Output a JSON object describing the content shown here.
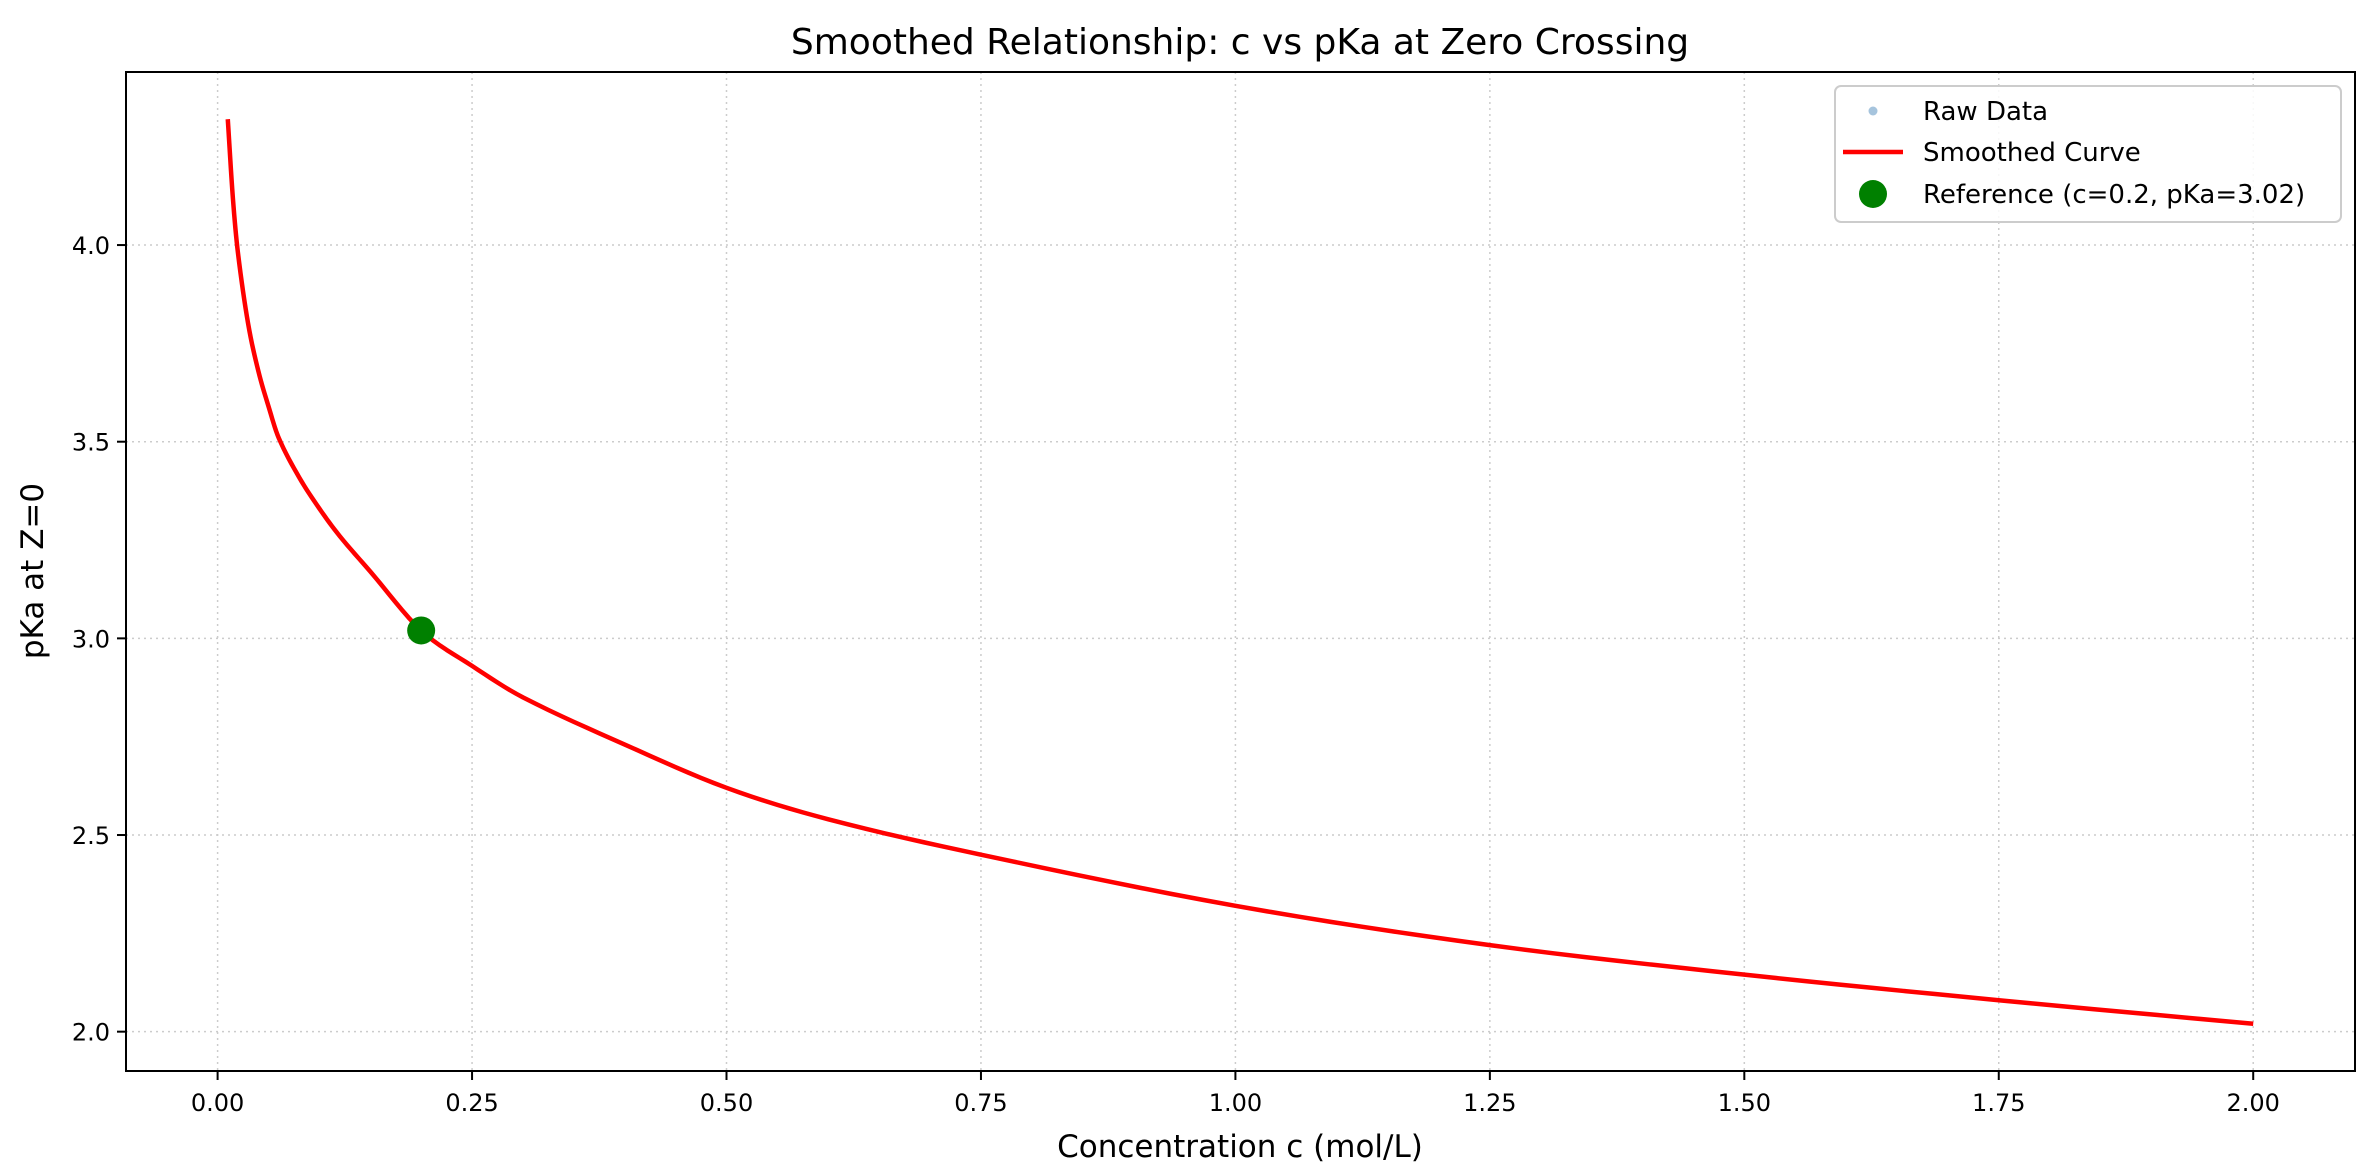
{
  "chart_data": {
    "type": "line",
    "title": "Smoothed Relationship: c vs pKa at Zero Crossing",
    "xlabel": "Concentration c (mol/L)",
    "ylabel": "pKa at Z=0",
    "xlim": [
      -0.09,
      2.1
    ],
    "ylim": [
      1.9,
      4.44
    ],
    "grid": true,
    "grid_style": "dotted",
    "legend_position": "top-right",
    "x_ticks": [
      "0.00",
      "0.25",
      "0.50",
      "0.75",
      "1.00",
      "1.25",
      "1.50",
      "1.75",
      "2.00"
    ],
    "y_ticks": [
      "2.0",
      "2.5",
      "3.0",
      "3.5",
      "4.0"
    ],
    "legend": [
      {
        "label": "Raw Data",
        "marker": "dot",
        "color": "#a6c4dd"
      },
      {
        "label": "Smoothed Curve",
        "marker": "line",
        "color": "#ff0000"
      },
      {
        "label": "Reference (c=0.2, pKa=3.02)",
        "marker": "circle",
        "color": "#008000"
      }
    ],
    "series": [
      {
        "name": "Smoothed Curve",
        "color": "#ff0000",
        "x": [
          0.01,
          0.015,
          0.02,
          0.03,
          0.04,
          0.05,
          0.06,
          0.08,
          0.1,
          0.12,
          0.15,
          0.2,
          0.25,
          0.3,
          0.4,
          0.5,
          0.6,
          0.75,
          1.0,
          1.25,
          1.5,
          1.75,
          2.0
        ],
        "y": [
          4.32,
          4.12,
          3.98,
          3.8,
          3.68,
          3.59,
          3.51,
          3.41,
          3.33,
          3.26,
          3.17,
          3.02,
          2.93,
          2.85,
          2.73,
          2.62,
          2.54,
          2.45,
          2.32,
          2.22,
          2.145,
          2.08,
          2.02
        ]
      }
    ],
    "reference_point": {
      "x": 0.2,
      "y": 3.02,
      "color": "#008000"
    }
  }
}
